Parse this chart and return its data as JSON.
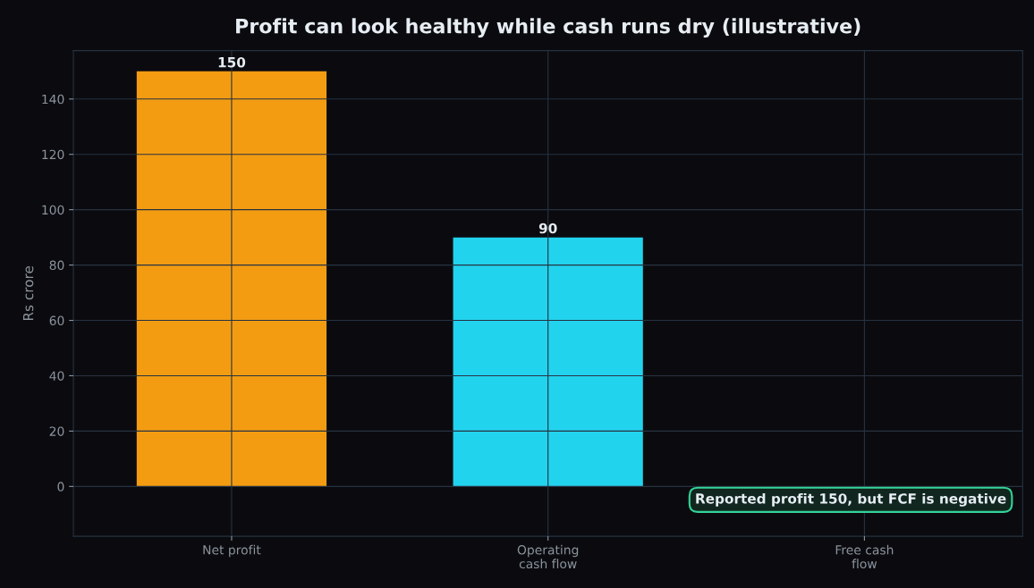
{
  "chart_data": {
    "type": "bar",
    "title": "Profit can look healthy while cash runs dry (illustrative)",
    "ylabel": "Rs crore",
    "categories": [
      "Net profit",
      "Operating\ncash flow",
      "Free cash\nflow"
    ],
    "values": [
      150,
      90,
      null
    ],
    "colors": [
      "#f39c12",
      "#22d3ee",
      "#ef4444"
    ],
    "ylim": [
      -18,
      157.5
    ],
    "yticks": [
      0,
      20,
      40,
      60,
      80,
      100,
      120,
      140
    ],
    "grid": true,
    "data_labels": true,
    "annotations": [
      "Reported profit 150, but FCF is negative"
    ]
  }
}
